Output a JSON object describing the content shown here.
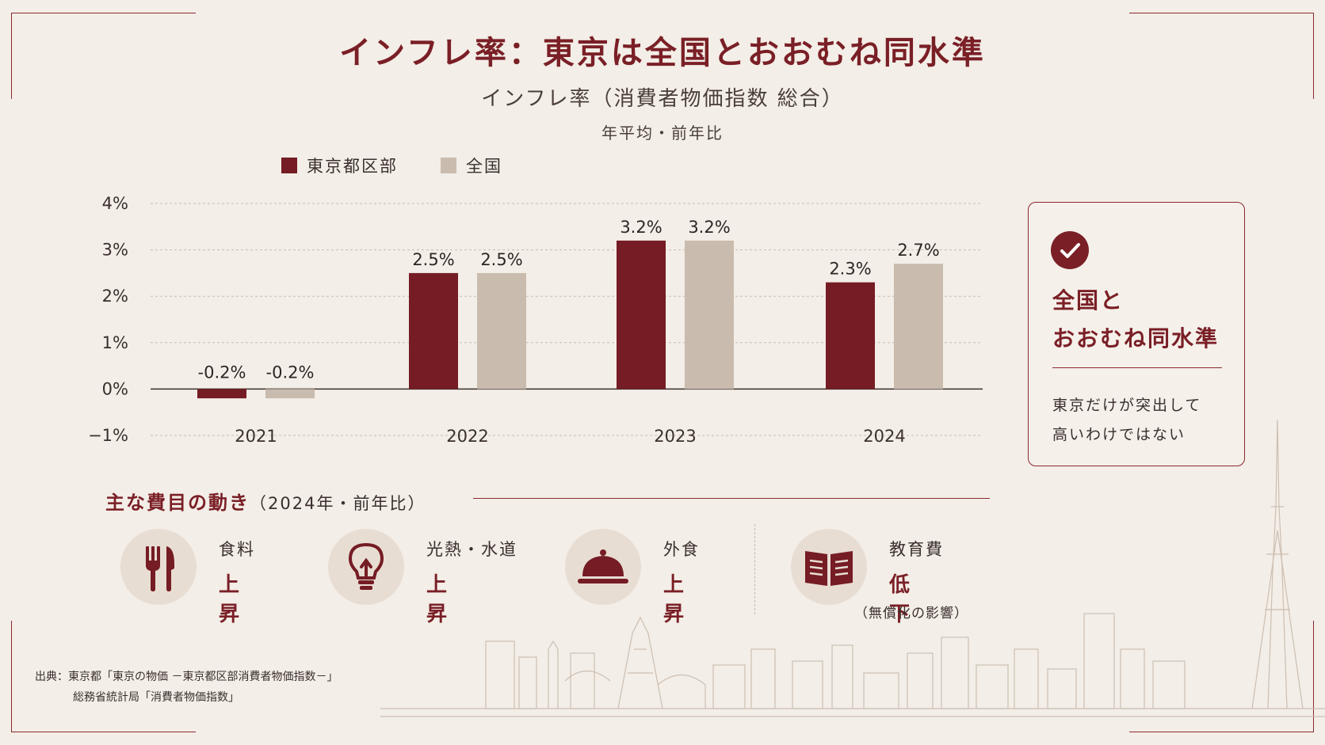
{
  "title": "インフレ率：東京は全国とおおむね同水準",
  "subtitle": "インフレ率（消費者物価指数 総合）",
  "subnote": "年平均・前年比",
  "colors": {
    "tokyo": "#751c24",
    "national": "#c9bcaf",
    "accent": "#7a1f26"
  },
  "chart_data": {
    "type": "bar",
    "categories": [
      "2021",
      "2022",
      "2023",
      "2024"
    ],
    "series": [
      {
        "name": "東京都区部",
        "values": [
          -0.2,
          2.5,
          3.2,
          2.3
        ],
        "labels": [
          "-0.2%",
          "2.5%",
          "3.2%",
          "2.3%"
        ]
      },
      {
        "name": "全国",
        "values": [
          -0.2,
          2.5,
          3.2,
          2.7
        ],
        "labels": [
          "-0.2%",
          "2.5%",
          "3.2%",
          "2.7%"
        ]
      }
    ],
    "yticks": [
      4,
      3,
      2,
      1,
      0,
      -1
    ],
    "ytick_labels": [
      "4%",
      "3%",
      "2%",
      "1%",
      "0%",
      "−1%"
    ],
    "ylim": [
      -1,
      4
    ],
    "grid": true,
    "legend": "top-left"
  },
  "callout": {
    "icon": "check-circle-icon",
    "heading_line1": "全国と",
    "heading_line2": "おおむね同水準",
    "body_line1": "東京だけが突出して",
    "body_line2": "高いわけではない"
  },
  "section": {
    "title": "主な費目の動き",
    "subtitle": "（2024年・前年比）",
    "items": [
      {
        "icon": "fork-knife-icon",
        "label": "食料",
        "value": "上昇"
      },
      {
        "icon": "light-bulb-icon",
        "label": "光熱・水道",
        "value": "上昇"
      },
      {
        "icon": "cloche-icon",
        "label": "外食",
        "value": "上昇"
      },
      {
        "icon": "open-book-icon",
        "label": "教育費",
        "value": "低下",
        "note": "（無償化の影響）"
      }
    ]
  },
  "source": {
    "line1": "出典：東京都「東京の物価 －東京都区部消費者物価指数－」",
    "line2": "総務省統計局「消費者物価指数」"
  }
}
